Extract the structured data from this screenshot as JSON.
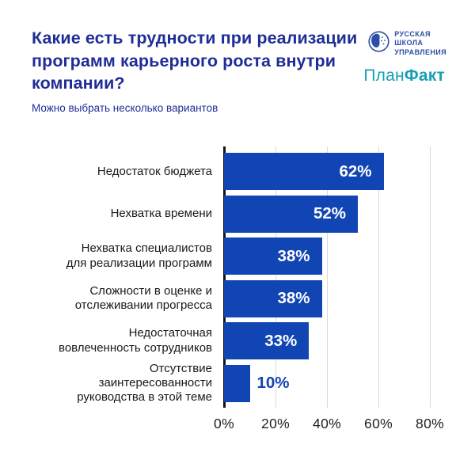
{
  "header": {
    "title": "Какие есть трудности при реализации программ карьерного роста внутри компании?",
    "subtitle": "Можно выбрать несколько вариантов",
    "title_color": "#1f2d96",
    "logos": {
      "rsu": {
        "line1": "РУССКАЯ",
        "line2": "ШКОЛА",
        "line3": "УПРАВЛЕНИЯ",
        "color": "#2b4fa5"
      },
      "planfact": {
        "part1": "План",
        "part2": "Факт",
        "color": "#189fb5"
      }
    }
  },
  "chart_data": {
    "type": "bar",
    "orientation": "horizontal",
    "title": "Какие есть трудности при реализации программ карьерного роста внутри компании?",
    "subtitle": "Можно выбрать несколько вариантов",
    "categories": [
      "Недостаток бюджета",
      "Нехватка времени",
      "Нехватка специалистов\nдля реализации программ",
      "Сложности в оценке и\nотслеживании прогресса",
      "Недостаточная\nвовлеченность сотрудников",
      "Отсутствие\nзаинтересованности\nруководства в этой теме"
    ],
    "values": [
      62,
      52,
      38,
      38,
      33,
      10
    ],
    "value_labels": [
      "62%",
      "52%",
      "38%",
      "38%",
      "33%",
      "10%"
    ],
    "x_ticks": [
      "0%",
      "20%",
      "40%",
      "60%",
      "80%"
    ],
    "x_tick_values": [
      0,
      20,
      40,
      60,
      80
    ],
    "xlim": [
      0,
      85
    ],
    "grid": true,
    "legend": false,
    "xlabel": "",
    "ylabel": "",
    "bar_color": "#1245b4",
    "value_label_inside_color": "#ffffff",
    "value_label_outside_color": "#1245b4",
    "gridline_color": "#d8d8d8",
    "axis_line_color": "#141414",
    "tick_label_color": "#222222",
    "category_label_color": "#191919"
  }
}
